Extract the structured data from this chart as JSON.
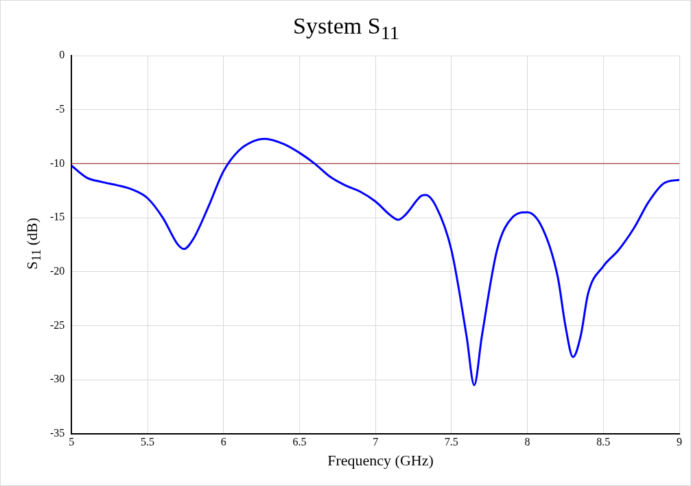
{
  "chart_data": {
    "type": "line",
    "title": "System S$_{11}$",
    "xlabel": "Frequency (GHz)",
    "ylabel": "S$_{11}$ (dB)",
    "xlim": [
      5,
      9
    ],
    "xticks": [
      5,
      5.5,
      6,
      6.5,
      7,
      7.5,
      8,
      8.5,
      9
    ],
    "ylim": [
      -35,
      0
    ],
    "yticks": [
      -35,
      -30,
      -25,
      -20,
      -15,
      -10,
      -5,
      0
    ],
    "grid": true,
    "legend": false,
    "marker": "none",
    "line_style": "solid",
    "ref_lines": [
      {
        "axis": "y",
        "value": -10,
        "color": "#a0403c"
      }
    ],
    "series": [
      {
        "color": "#0000ff",
        "x": [
          5,
          5.1,
          5.2,
          5.3,
          5.4,
          5.5,
          5.6,
          5.7,
          5.74,
          5.8,
          5.9,
          6,
          6.1,
          6.2,
          6.27,
          6.4,
          6.5,
          6.6,
          6.7,
          6.8,
          6.9,
          7,
          7.1,
          7.15,
          7.2,
          7.3,
          7.33,
          7.4,
          7.5,
          7.6,
          7.65,
          7.7,
          7.8,
          7.9,
          8,
          8.1,
          8.2,
          8.25,
          8.3,
          8.35,
          8.4,
          8.5,
          8.6,
          8.7,
          8.8,
          8.9,
          9
        ],
        "values": [
          -10.2,
          -11.3,
          -11.7,
          -12,
          -12.4,
          -13.2,
          -15,
          -17.5,
          -17.9,
          -17,
          -14,
          -10.7,
          -8.8,
          -7.9,
          -7.7,
          -8.2,
          -9,
          -10,
          -11.2,
          -12,
          -12.6,
          -13.5,
          -14.8,
          -15.2,
          -14.7,
          -13,
          -12.9,
          -14,
          -18,
          -26,
          -30.5,
          -26,
          -18,
          -15,
          -14.5,
          -16,
          -20.5,
          -25,
          -27.9,
          -26,
          -22,
          -19.5,
          -18,
          -16,
          -13.5,
          -11.8,
          -11.5
        ]
      }
    ]
  }
}
